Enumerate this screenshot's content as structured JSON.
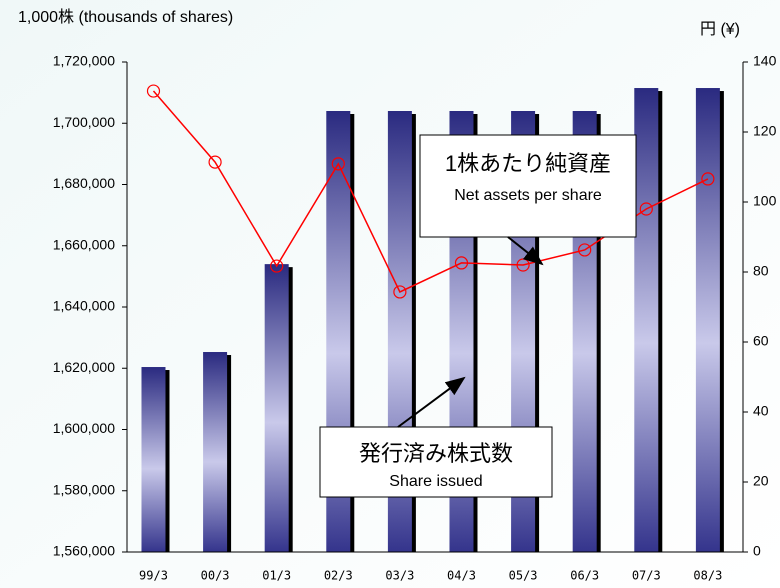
{
  "chart_data": {
    "type": "bar-line",
    "y_label": "1,000株 (thousands of shares)",
    "y2_label": "円 (¥)",
    "categories": [
      "99/3",
      "00/3",
      "01/3",
      "02/3",
      "03/3",
      "04/3",
      "05/3",
      "06/3",
      "07/3",
      "08/3"
    ],
    "series": [
      {
        "type": "bar",
        "color": "#2e2e86",
        "values": [
          1620400,
          1625300,
          1654000,
          1704000,
          1704000,
          1704000,
          1704000,
          1704000,
          1711500,
          1711500
        ]
      },
      {
        "type": "line",
        "axis": "y2",
        "color": "#ff0000",
        "values": [
          131.7,
          111.4,
          81.7,
          110.9,
          74.3,
          82.6,
          82.0,
          86.3,
          98.0,
          106.6
        ]
      }
    ],
    "ylim": [
      1560000,
      1720000
    ],
    "yticks": [
      {
        "value": 1560000,
        "label": "1,560,000"
      },
      {
        "value": 1580000,
        "label": "1,580,000"
      },
      {
        "value": 1600000,
        "label": "1,600,000"
      },
      {
        "value": 1620000,
        "label": "1,620,000"
      },
      {
        "value": 1640000,
        "label": "1,640,000"
      },
      {
        "value": 1660000,
        "label": "1,660,000"
      },
      {
        "value": 1680000,
        "label": "1,680,000"
      },
      {
        "value": 1700000,
        "label": "1,700,000"
      },
      {
        "value": 1720000,
        "label": "1,720,000"
      }
    ],
    "y2lim": [
      0,
      140
    ],
    "y2ticks": [
      0,
      20,
      40,
      60,
      80,
      100,
      120,
      140
    ],
    "annotations": [
      {
        "text": "1株あたり純資産",
        "subtext": "Net assets per share"
      },
      {
        "text": "発行済み株式数",
        "subtext": "Share issued"
      }
    ]
  }
}
